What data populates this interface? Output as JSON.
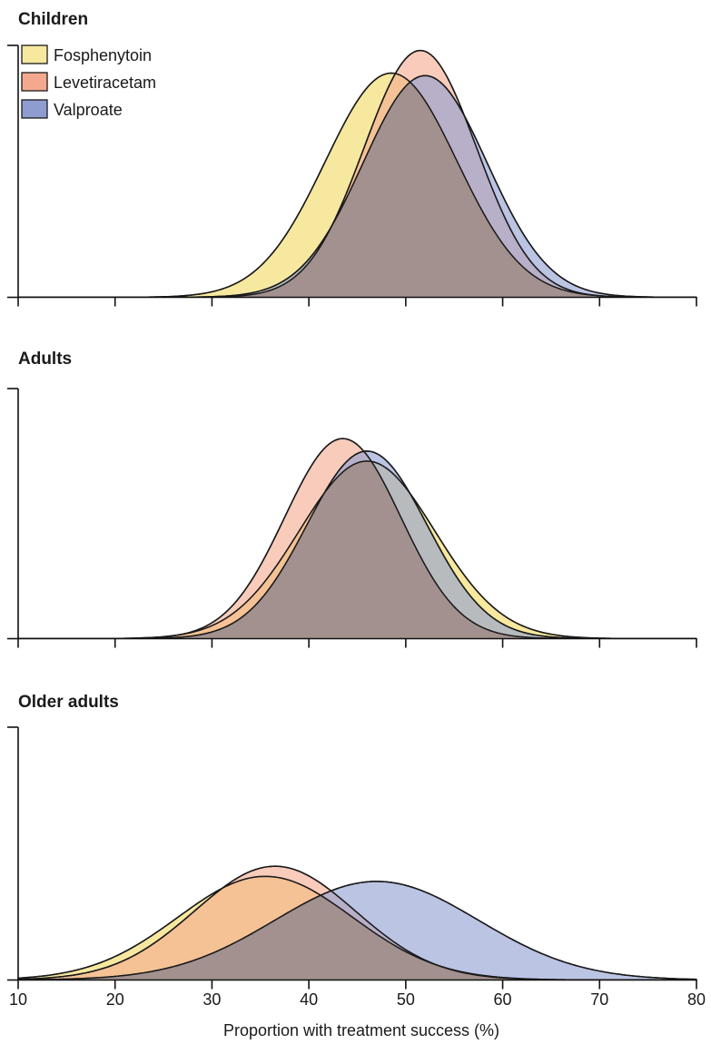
{
  "chart_data": [
    {
      "type": "area",
      "title": "Children",
      "ylabel": "",
      "xlim": [
        10,
        80
      ],
      "grid": false,
      "legend": "top-left",
      "series": [
        {
          "name": "Fosphenytoin",
          "color": "#f7e8a0",
          "mean": 48.5,
          "sd": 6.8,
          "peak": 0.89
        },
        {
          "name": "Levetiracetam",
          "color": "#f4a98e",
          "mean": 51.5,
          "sd": 5.8,
          "peak": 0.98
        },
        {
          "name": "Valproate",
          "color": "#8e9cd0",
          "mean": 52.0,
          "sd": 6.4,
          "peak": 0.88
        }
      ]
    },
    {
      "type": "area",
      "title": "Adults",
      "ylabel": "",
      "xlim": [
        10,
        80
      ],
      "grid": false,
      "series": [
        {
          "name": "Fosphenytoin",
          "color": "#f7e8a0",
          "mean": 46.0,
          "sd": 7.0,
          "peak": 0.71
        },
        {
          "name": "Levetiracetam",
          "color": "#f4a98e",
          "mean": 43.5,
          "sd": 6.0,
          "peak": 0.8
        },
        {
          "name": "Valproate",
          "color": "#8e9cd0",
          "mean": 46.0,
          "sd": 6.2,
          "peak": 0.75
        }
      ]
    },
    {
      "type": "area",
      "title": "Older adults",
      "ylabel": "",
      "xlim": [
        10,
        80
      ],
      "grid": false,
      "xticks": [
        "10",
        "20",
        "30",
        "40",
        "50",
        "60",
        "70",
        "80"
      ],
      "xlabel": "Proportion with treatment success (%)",
      "series": [
        {
          "name": "Fosphenytoin",
          "color": "#f7e8a0",
          "mean": 35.5,
          "sd": 9.0,
          "peak": 0.41
        },
        {
          "name": "Levetiracetam",
          "color": "#f4a98e",
          "mean": 36.5,
          "sd": 8.3,
          "peak": 0.45
        },
        {
          "name": "Valproate",
          "color": "#8e9cd0",
          "mean": 47.0,
          "sd": 10.5,
          "peak": 0.39
        }
      ]
    }
  ],
  "colors": {
    "overlap_fill": "#a08f8c",
    "orange_overlap": "#f6bb70"
  }
}
